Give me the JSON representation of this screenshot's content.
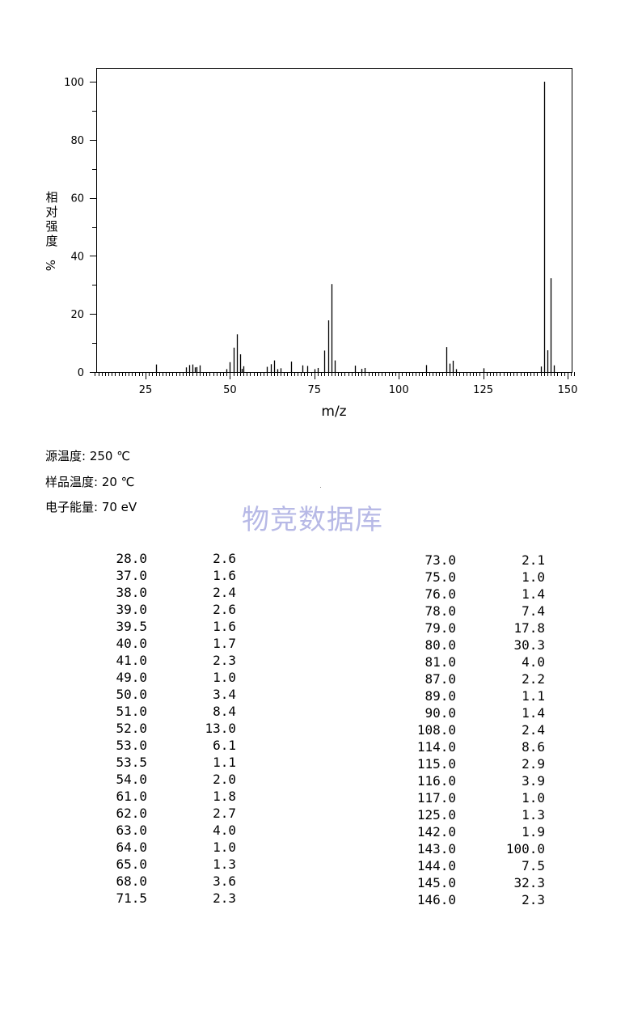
{
  "chart_data": {
    "type": "bar",
    "xlabel": "m/z",
    "ylabel": "相对强度 %",
    "xlim": [
      10,
      152
    ],
    "ylim": [
      0,
      100
    ],
    "xticks": [
      25,
      50,
      75,
      100,
      125,
      150
    ],
    "yticks": [
      0,
      20,
      40,
      60,
      80,
      100
    ],
    "grid": false,
    "series": [
      {
        "x": [
          28.0,
          37.0,
          38.0,
          39.0,
          39.5,
          40.0,
          41.0,
          49.0,
          50.0,
          51.0,
          52.0,
          53.0,
          53.5,
          54.0,
          61.0,
          62.0,
          63.0,
          64.0,
          65.0,
          68.0,
          71.5,
          73.0,
          75.0,
          76.0,
          78.0,
          79.0,
          80.0,
          81.0,
          87.0,
          89.0,
          90.0,
          108.0,
          114.0,
          115.0,
          116.0,
          117.0,
          125.0,
          142.0,
          143.0,
          144.0,
          145.0,
          146.0
        ],
        "values": [
          2.6,
          1.6,
          2.4,
          2.6,
          1.6,
          1.7,
          2.3,
          1.0,
          3.4,
          8.4,
          13.0,
          6.1,
          1.1,
          2.0,
          1.8,
          2.7,
          4.0,
          1.0,
          1.3,
          3.6,
          2.3,
          2.1,
          1.0,
          1.4,
          7.4,
          17.8,
          30.3,
          4.0,
          2.2,
          1.1,
          1.4,
          2.4,
          8.6,
          2.9,
          3.9,
          1.0,
          1.3,
          1.9,
          100.0,
          7.5,
          32.3,
          2.3
        ]
      }
    ]
  },
  "conditions": {
    "source_temp": "源温度: 250 ℃",
    "sample_temp": "样品温度: 20 ℃",
    "electron_energy": "电子能量: 70 eV"
  },
  "watermark": "物竞数据库",
  "peak_table": {
    "left": [
      {
        "mz": "28.0",
        "ab": "2.6"
      },
      {
        "mz": "37.0",
        "ab": "1.6"
      },
      {
        "mz": "38.0",
        "ab": "2.4"
      },
      {
        "mz": "39.0",
        "ab": "2.6"
      },
      {
        "mz": "39.5",
        "ab": "1.6"
      },
      {
        "mz": "40.0",
        "ab": "1.7"
      },
      {
        "mz": "41.0",
        "ab": "2.3"
      },
      {
        "mz": "49.0",
        "ab": "1.0"
      },
      {
        "mz": "50.0",
        "ab": "3.4"
      },
      {
        "mz": "51.0",
        "ab": "8.4"
      },
      {
        "mz": "52.0",
        "ab": "13.0"
      },
      {
        "mz": "53.0",
        "ab": "6.1"
      },
      {
        "mz": "53.5",
        "ab": "1.1"
      },
      {
        "mz": "54.0",
        "ab": "2.0"
      },
      {
        "mz": "61.0",
        "ab": "1.8"
      },
      {
        "mz": "62.0",
        "ab": "2.7"
      },
      {
        "mz": "63.0",
        "ab": "4.0"
      },
      {
        "mz": "64.0",
        "ab": "1.0"
      },
      {
        "mz": "65.0",
        "ab": "1.3"
      },
      {
        "mz": "68.0",
        "ab": "3.6"
      },
      {
        "mz": "71.5",
        "ab": "2.3"
      }
    ],
    "right": [
      {
        "mz": "73.0",
        "ab": "2.1"
      },
      {
        "mz": "75.0",
        "ab": "1.0"
      },
      {
        "mz": "76.0",
        "ab": "1.4"
      },
      {
        "mz": "78.0",
        "ab": "7.4"
      },
      {
        "mz": "79.0",
        "ab": "17.8"
      },
      {
        "mz": "80.0",
        "ab": "30.3"
      },
      {
        "mz": "81.0",
        "ab": "4.0"
      },
      {
        "mz": "87.0",
        "ab": "2.2"
      },
      {
        "mz": "89.0",
        "ab": "1.1"
      },
      {
        "mz": "90.0",
        "ab": "1.4"
      },
      {
        "mz": "108.0",
        "ab": "2.4"
      },
      {
        "mz": "114.0",
        "ab": "8.6"
      },
      {
        "mz": "115.0",
        "ab": "2.9"
      },
      {
        "mz": "116.0",
        "ab": "3.9"
      },
      {
        "mz": "117.0",
        "ab": "1.0"
      },
      {
        "mz": "125.0",
        "ab": "1.3"
      },
      {
        "mz": "142.0",
        "ab": "1.9"
      },
      {
        "mz": "143.0",
        "ab": "100.0"
      },
      {
        "mz": "144.0",
        "ab": "7.5"
      },
      {
        "mz": "145.0",
        "ab": "32.3"
      },
      {
        "mz": "146.0",
        "ab": "2.3"
      }
    ]
  }
}
